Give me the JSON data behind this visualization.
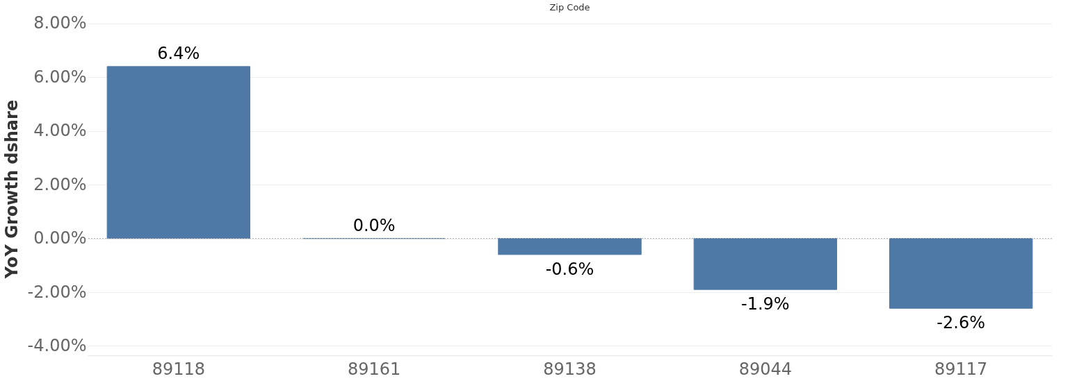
{
  "chart_data": {
    "type": "bar",
    "xlabel": "Zip Code",
    "ylabel": "YoY Growth dshare",
    "categories": [
      "89118",
      "89161",
      "89138",
      "89044",
      "89117"
    ],
    "values": [
      6.4,
      0.0,
      -0.6,
      -1.9,
      -2.6
    ],
    "value_labels": [
      "6.4%",
      "0.0%",
      "-0.6%",
      "-1.9%",
      "-2.6%"
    ],
    "color": "#4e78a6",
    "ylim": [
      -4.35,
      8.05
    ],
    "yticks": [
      {
        "value": -4,
        "label": "-4.00%"
      },
      {
        "value": -2,
        "label": "-2.00%"
      },
      {
        "value": 0,
        "label": "0.00%"
      },
      {
        "value": 2,
        "label": "2.00%"
      },
      {
        "value": 4,
        "label": "4.00%"
      },
      {
        "value": 6,
        "label": "6.00%"
      },
      {
        "value": 8,
        "label": "8.00%"
      }
    ],
    "ref_lines": [
      {
        "axis": "y",
        "value": 0,
        "line_style": "dotted",
        "color": "#aaaaaa"
      }
    ],
    "grid": "y"
  }
}
